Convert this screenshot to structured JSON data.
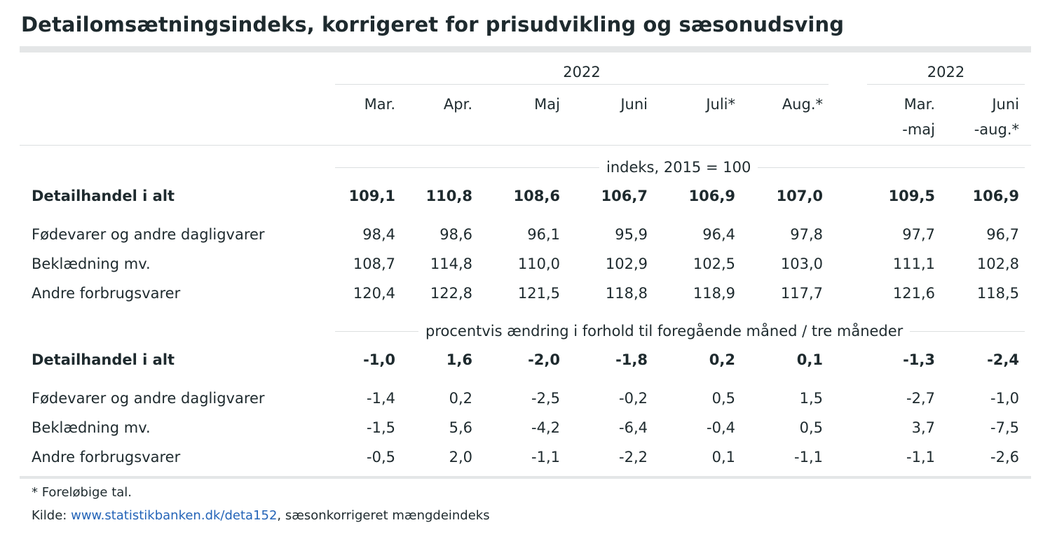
{
  "title": "Detailomsætningsindeks, korrigeret for prisudvikling og sæsonudsving",
  "header": {
    "group_left_year": "2022",
    "group_right_year": "2022",
    "months": [
      "Mar.",
      "Apr.",
      "Maj",
      "Juni",
      "Juli*",
      "Aug.*"
    ],
    "periods": [
      {
        "line1": "Mar.",
        "line2": "-maj"
      },
      {
        "line1": "Juni",
        "line2": "-aug.*"
      }
    ]
  },
  "sections": [
    {
      "label": "indeks, 2015 = 100",
      "rows": [
        {
          "name": "Detailhandel i alt",
          "bold": true,
          "values": [
            "109,1",
            "110,8",
            "108,6",
            "106,7",
            "106,9",
            "107,0",
            "109,5",
            "106,9"
          ]
        },
        {
          "name": "Fødevarer og andre dagligvarer",
          "bold": false,
          "values": [
            "98,4",
            "98,6",
            "96,1",
            "95,9",
            "96,4",
            "97,8",
            "97,7",
            "96,7"
          ]
        },
        {
          "name": "Beklædning mv.",
          "bold": false,
          "values": [
            "108,7",
            "114,8",
            "110,0",
            "102,9",
            "102,5",
            "103,0",
            "111,1",
            "102,8"
          ]
        },
        {
          "name": "Andre forbrugsvarer",
          "bold": false,
          "values": [
            "120,4",
            "122,8",
            "121,5",
            "118,8",
            "118,9",
            "117,7",
            "121,6",
            "118,5"
          ]
        }
      ]
    },
    {
      "label": "procentvis ændring i forhold til foregående måned / tre måneder",
      "rows": [
        {
          "name": "Detailhandel i alt",
          "bold": true,
          "values": [
            "-1,0",
            "1,6",
            "-2,0",
            "-1,8",
            "0,2",
            "0,1",
            "-1,3",
            "-2,4"
          ]
        },
        {
          "name": "Fødevarer og andre dagligvarer",
          "bold": false,
          "values": [
            "-1,4",
            "0,2",
            "-2,5",
            "-0,2",
            "0,5",
            "1,5",
            "-2,7",
            "-1,0"
          ]
        },
        {
          "name": "Beklædning mv.",
          "bold": false,
          "values": [
            "-1,5",
            "5,6",
            "-4,2",
            "-6,4",
            "-0,4",
            "0,5",
            "3,7",
            "-7,5"
          ]
        },
        {
          "name": "Andre forbrugsvarer",
          "bold": false,
          "values": [
            "-0,5",
            "2,0",
            "-1,1",
            "-2,2",
            "0,1",
            "-1,1",
            "-1,1",
            "-2,6"
          ]
        }
      ]
    }
  ],
  "footnote": "* Foreløbige tal.",
  "source": {
    "prefix": "Kilde: ",
    "link_text": "www.statistikbanken.dk/deta152",
    "suffix": ", sæsonkorrigeret mængdeindeks"
  }
}
